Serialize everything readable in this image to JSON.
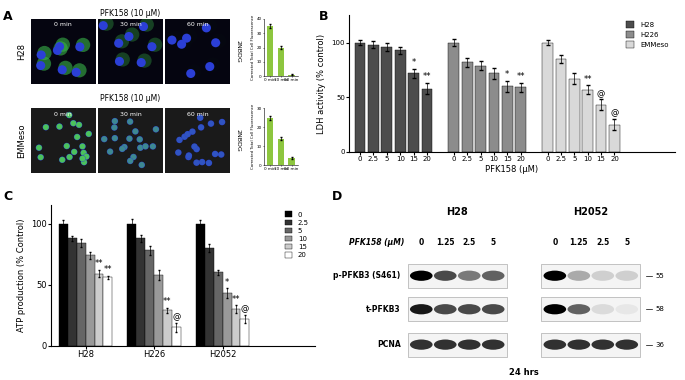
{
  "panel_labels": [
    "A",
    "B",
    "C",
    "D"
  ],
  "microscopy": {
    "treatment": "PFK158 (10 μM)",
    "stain": "2NBDG",
    "rows": [
      {
        "cell_line": "H28",
        "times": [
          "0 min",
          "30 min",
          "60 min"
        ]
      },
      {
        "cell_line": "EMMeso",
        "times": [
          "0 min",
          "30 min",
          "60 min"
        ]
      }
    ]
  },
  "chart_data": [
    {
      "type": "bar",
      "ylabel": "Corrected Total Cell Fluorescence",
      "categories": [
        "0 min",
        "30 min",
        "60 min"
      ],
      "values": [
        35,
        20,
        1
      ],
      "errors": [
        1.5,
        1,
        0.5
      ],
      "color": "#8dc63f",
      "ylim": [
        0,
        40
      ],
      "yticks": [
        0,
        10,
        20,
        30,
        40
      ]
    },
    {
      "type": "bar",
      "ylabel": "Corrected Total Cell Fluorescence",
      "categories": [
        "0 min",
        "30 min",
        "60 min"
      ],
      "values": [
        25,
        14,
        4
      ],
      "errors": [
        1,
        0.8,
        0.5
      ],
      "color": "#8dc63f",
      "ylim": [
        0,
        30
      ],
      "yticks": [
        0,
        10,
        20,
        30
      ]
    },
    {
      "type": "bar",
      "ylabel": "LDH activity (% control)",
      "xlabel": "PFK158 (μM)",
      "categories": [
        "0",
        "2.5",
        "5",
        "10",
        "15",
        "20"
      ],
      "series": [
        {
          "name": "H28",
          "color": "#4d4d4d",
          "values": [
            100,
            98,
            96,
            93,
            72,
            58
          ],
          "errors": [
            2,
            3,
            4,
            3,
            4,
            5
          ],
          "annotations": [
            null,
            null,
            null,
            null,
            "*",
            "**"
          ]
        },
        {
          "name": "H226",
          "color": "#8c8c8c",
          "values": [
            100,
            82,
            79,
            72,
            60,
            59
          ],
          "errors": [
            3,
            4,
            4,
            5,
            5,
            4
          ],
          "annotations": [
            null,
            null,
            null,
            null,
            "*",
            "**"
          ]
        },
        {
          "name": "EMMeso",
          "color": "#d9d9d9",
          "values": [
            100,
            85,
            67,
            57,
            43,
            25
          ],
          "errors": [
            2,
            4,
            5,
            4,
            5,
            5
          ],
          "annotations": [
            null,
            null,
            null,
            "**",
            "@",
            "@"
          ]
        }
      ],
      "ylim": [
        0,
        125
      ],
      "yticks": [
        0,
        50,
        100
      ],
      "legend": "upper right"
    },
    {
      "type": "bar",
      "ylabel": "ATP production (% Control)",
      "categories": [
        "H28",
        "H226",
        "H2052"
      ],
      "series": [
        {
          "name": "0",
          "color": "#000000",
          "values": [
            100,
            100,
            100
          ],
          "errors": [
            3,
            4,
            3
          ],
          "annotations": [
            null,
            null,
            null
          ]
        },
        {
          "name": "2.5",
          "color": "#333333",
          "values": [
            88,
            88,
            80
          ],
          "errors": [
            2,
            3,
            3
          ],
          "annotations": [
            null,
            null,
            null
          ]
        },
        {
          "name": "5",
          "color": "#666666",
          "values": [
            84,
            78,
            60
          ],
          "errors": [
            3,
            4,
            2
          ],
          "annotations": [
            null,
            null,
            null
          ]
        },
        {
          "name": "10",
          "color": "#999999",
          "values": [
            74,
            58,
            43
          ],
          "errors": [
            3,
            4,
            4
          ],
          "annotations": [
            null,
            null,
            "*"
          ]
        },
        {
          "name": "15",
          "color": "#cccccc",
          "values": [
            59,
            29,
            30
          ],
          "errors": [
            3,
            2,
            3
          ],
          "annotations": [
            "**",
            "**",
            "**"
          ]
        },
        {
          "name": "20",
          "color": "#ffffff",
          "values": [
            56,
            15,
            22
          ],
          "errors": [
            1,
            4,
            3
          ],
          "annotations": [
            "**",
            "@",
            "@"
          ]
        }
      ],
      "ylim": [
        0,
        115
      ],
      "yticks": [
        0,
        50,
        100
      ],
      "legend": "upper right"
    }
  ],
  "blot": {
    "cell_lines": [
      "H28",
      "H2052"
    ],
    "treatment_label": "PFK158 (μM)",
    "doses": [
      "0",
      "1.25",
      "2.5",
      "5"
    ],
    "time": "24 hrs",
    "rows": [
      {
        "label": "p-PFKB3 (S461)",
        "mw": "55",
        "intensities": [
          [
            1.0,
            0.7,
            0.5,
            0.6
          ],
          [
            1.0,
            0.3,
            0.15,
            0.15
          ]
        ]
      },
      {
        "label": "t-PFKB3",
        "mw": "58",
        "intensities": [
          [
            0.9,
            0.7,
            0.7,
            0.7
          ],
          [
            1.0,
            0.6,
            0.1,
            0.05
          ]
        ]
      },
      {
        "label": "PCNA",
        "mw": "36",
        "intensities": [
          [
            0.8,
            0.8,
            0.8,
            0.8
          ],
          [
            0.8,
            0.8,
            0.8,
            0.8
          ]
        ]
      }
    ]
  }
}
